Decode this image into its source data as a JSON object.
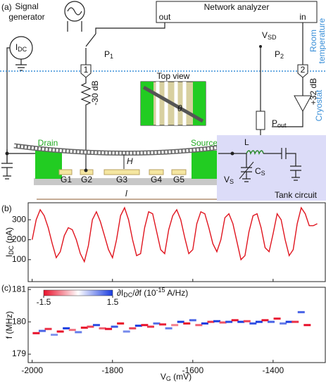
{
  "diagram": {
    "panel": "(a)",
    "signal_generator": [
      "Signal",
      "generator"
    ],
    "network_analyzer": "Network analyzer",
    "out": "out",
    "in": "in",
    "idc": {
      "t": "I",
      "sub": "DC"
    },
    "p1": {
      "t": "P",
      "sub": "1"
    },
    "p2": {
      "t": "P",
      "sub": "2"
    },
    "vsd": {
      "t": "V",
      "sub": "SD"
    },
    "pout": {
      "t": "P",
      "sub": "out"
    },
    "attenuation": "-30 dB",
    "gain": "+32 dB",
    "room_temperature": [
      "Room",
      "temperature"
    ],
    "cryostat": "Cryostat",
    "port1": "1",
    "port2": "2",
    "top_view": "Top view",
    "theta": "θ",
    "drain": "Drain",
    "source": "Source",
    "height": "H",
    "length": "l",
    "gates": [
      "G1",
      "G2",
      "G3",
      "G4",
      "G5"
    ],
    "inductor": "L",
    "cs": {
      "t": "C",
      "sub": "S"
    },
    "vs": {
      "t": "V",
      "sub": "S"
    },
    "tank_circuit": "Tank circuit"
  },
  "chart_data": [
    {
      "type": "line",
      "panel": "(b)",
      "ylabel": {
        "t": "I",
        "sub": "DC",
        "unit": " (pA)"
      },
      "x": [
        -2000,
        -1990,
        -1980,
        -1970,
        -1960,
        -1950,
        -1940,
        -1930,
        -1920,
        -1910,
        -1900,
        -1890,
        -1880,
        -1870,
        -1860,
        -1850,
        -1840,
        -1830,
        -1820,
        -1810,
        -1800,
        -1790,
        -1780,
        -1770,
        -1760,
        -1750,
        -1740,
        -1730,
        -1720,
        -1710,
        -1700,
        -1690,
        -1680,
        -1670,
        -1660,
        -1650,
        -1640,
        -1630,
        -1620,
        -1610,
        -1600,
        -1590,
        -1580,
        -1570,
        -1560,
        -1550,
        -1540,
        -1530,
        -1520,
        -1510,
        -1500,
        -1490,
        -1480,
        -1470,
        -1460,
        -1450,
        -1440,
        -1430,
        -1420,
        -1410,
        -1400,
        -1390,
        -1380,
        -1370,
        -1360,
        -1350,
        -1340,
        -1330,
        -1320,
        -1310,
        -1300,
        -1290
      ],
      "values": [
        200,
        300,
        350,
        320,
        260,
        180,
        110,
        140,
        220,
        260,
        250,
        200,
        130,
        90,
        170,
        300,
        340,
        290,
        220,
        150,
        110,
        200,
        320,
        360,
        300,
        200,
        120,
        130,
        260,
        340,
        330,
        240,
        150,
        130,
        250,
        320,
        350,
        300,
        210,
        130,
        150,
        280,
        340,
        330,
        260,
        180,
        140,
        200,
        310,
        330,
        280,
        190,
        100,
        120,
        240,
        320,
        330,
        260,
        160,
        140,
        230,
        330,
        300,
        200,
        120,
        150,
        280,
        360,
        330,
        270,
        270,
        280
      ],
      "color": "#e0141e",
      "xlim": [
        -2010,
        -1270
      ],
      "ylim": [
        -10,
        385
      ],
      "yticks": [
        100,
        200,
        300
      ]
    },
    {
      "type": "heatmap",
      "panel": "(c)",
      "ylabel": "f (MHz)",
      "xlabel": {
        "t": "V",
        "sub": "G",
        "unit": " (mV)"
      },
      "x": [
        -1990,
        -1975,
        -1960,
        -1945,
        -1930,
        -1915,
        -1900,
        -1885,
        -1870,
        -1855,
        -1840,
        -1825,
        -1810,
        -1795,
        -1780,
        -1765,
        -1750,
        -1735,
        -1720,
        -1705,
        -1690,
        -1675,
        -1660,
        -1645,
        -1630,
        -1615,
        -1600,
        -1585,
        -1570,
        -1555,
        -1540,
        -1525,
        -1510,
        -1495,
        -1480,
        -1465,
        -1450,
        -1435,
        -1420,
        -1405,
        -1390,
        -1375,
        -1360,
        -1345,
        -1330,
        -1315
      ],
      "y": [
        179.65,
        179.72,
        179.78,
        179.6,
        179.7,
        179.8,
        179.75,
        179.68,
        179.82,
        179.85,
        179.9,
        179.8,
        179.78,
        179.85,
        179.95,
        179.7,
        179.8,
        179.88,
        179.9,
        179.85,
        179.95,
        179.92,
        179.8,
        179.9,
        180.0,
        179.95,
        180.05,
        179.9,
        179.95,
        180.0,
        180.02,
        179.98,
        180.0,
        180.05,
        180.0,
        180.02,
        179.95,
        180.0,
        180.05,
        180.0,
        180.1,
        179.95,
        180.0,
        180.0,
        180.3,
        179.9
      ],
      "values": [
        -1.5,
        1.2,
        -1.3,
        0.8,
        -1.5,
        1.5,
        -0.9,
        1.0,
        -1.5,
        -1.2,
        1.4,
        -1.0,
        -1.5,
        1.3,
        -1.5,
        0.9,
        -1.2,
        1.5,
        -1.5,
        -1.3,
        1.1,
        -1.4,
        1.0,
        -0.8,
        1.5,
        -1.5,
        1.2,
        -1.0,
        1.5,
        -1.3,
        1.5,
        -1.1,
        1.4,
        -1.5,
        1.5,
        -1.2,
        1.3,
        1.5,
        -1.5,
        1.2,
        -1.4,
        1.0,
        1.5,
        -1.3,
        1.2,
        -1.5
      ],
      "xlim": [
        -2010,
        -1270
      ],
      "xticks": [
        -2000,
        -1800,
        -1600,
        -1400
      ],
      "ylim": [
        178.74,
        181.07
      ],
      "yticks": [
        179,
        180,
        181
      ],
      "colorbar": {
        "label": [
          "∂I",
          "DC",
          "/∂f (10",
          "-15",
          " A/Hz)"
        ],
        "clim": [
          -1.5,
          1.5
        ],
        "ticks": [
          -1.5,
          1.5
        ],
        "colors": [
          "#e8102a",
          "#ffffff",
          "#1a3ce0"
        ]
      }
    }
  ]
}
